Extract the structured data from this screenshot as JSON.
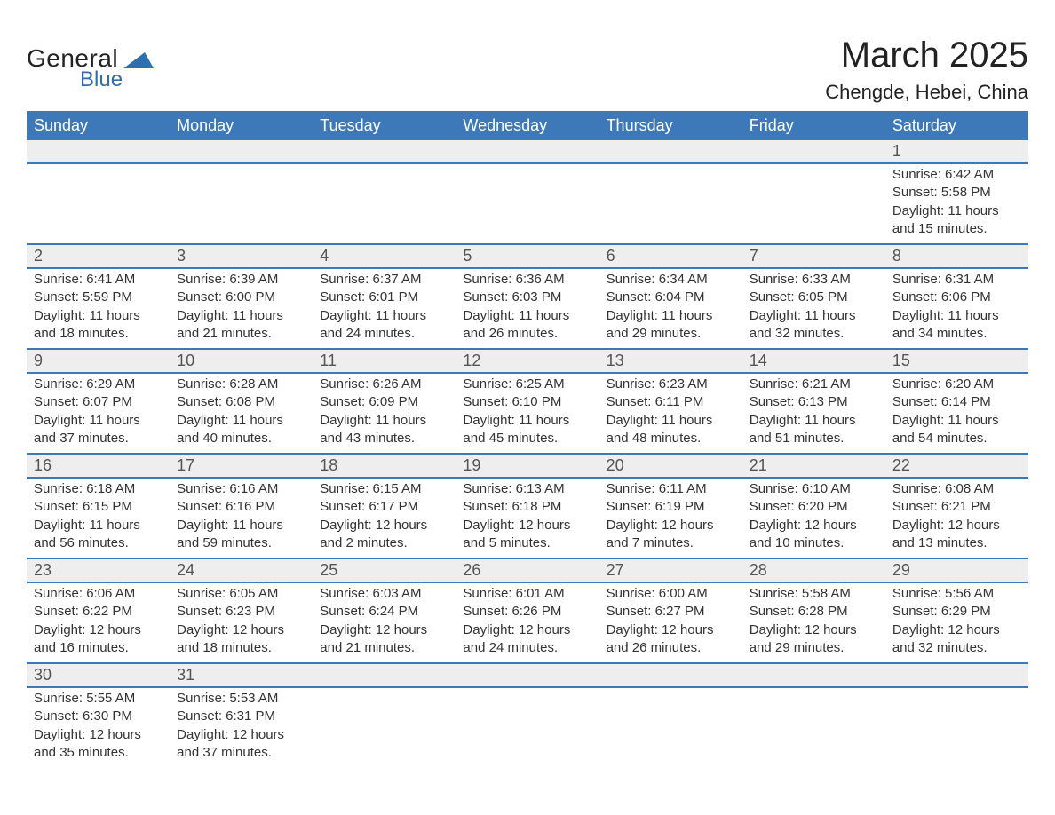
{
  "logo": {
    "general": "General",
    "blue": "Blue"
  },
  "title": "March 2025",
  "location": "Chengde, Hebei, China",
  "colors": {
    "header_bg": "#3d79b8",
    "header_text": "#ffffff",
    "daynum_bg": "#eeeeee",
    "daynum_text": "#555555",
    "body_text": "#333333",
    "logo_blue": "#2f6fb0",
    "border": "#3d79b8"
  },
  "layout": {
    "cols": 7,
    "font_family": "Arial, Helvetica, sans-serif",
    "title_fontsize": 40,
    "location_fontsize": 22,
    "weekday_fontsize": 18,
    "daynum_fontsize": 18,
    "cell_fontsize": 15
  },
  "weekdays": [
    "Sunday",
    "Monday",
    "Tuesday",
    "Wednesday",
    "Thursday",
    "Friday",
    "Saturday"
  ],
  "weeks": [
    [
      null,
      null,
      null,
      null,
      null,
      null,
      {
        "n": "1",
        "sunrise": "Sunrise: 6:42 AM",
        "sunset": "Sunset: 5:58 PM",
        "day1": "Daylight: 11 hours",
        "day2": "and 15 minutes."
      }
    ],
    [
      {
        "n": "2",
        "sunrise": "Sunrise: 6:41 AM",
        "sunset": "Sunset: 5:59 PM",
        "day1": "Daylight: 11 hours",
        "day2": "and 18 minutes."
      },
      {
        "n": "3",
        "sunrise": "Sunrise: 6:39 AM",
        "sunset": "Sunset: 6:00 PM",
        "day1": "Daylight: 11 hours",
        "day2": "and 21 minutes."
      },
      {
        "n": "4",
        "sunrise": "Sunrise: 6:37 AM",
        "sunset": "Sunset: 6:01 PM",
        "day1": "Daylight: 11 hours",
        "day2": "and 24 minutes."
      },
      {
        "n": "5",
        "sunrise": "Sunrise: 6:36 AM",
        "sunset": "Sunset: 6:03 PM",
        "day1": "Daylight: 11 hours",
        "day2": "and 26 minutes."
      },
      {
        "n": "6",
        "sunrise": "Sunrise: 6:34 AM",
        "sunset": "Sunset: 6:04 PM",
        "day1": "Daylight: 11 hours",
        "day2": "and 29 minutes."
      },
      {
        "n": "7",
        "sunrise": "Sunrise: 6:33 AM",
        "sunset": "Sunset: 6:05 PM",
        "day1": "Daylight: 11 hours",
        "day2": "and 32 minutes."
      },
      {
        "n": "8",
        "sunrise": "Sunrise: 6:31 AM",
        "sunset": "Sunset: 6:06 PM",
        "day1": "Daylight: 11 hours",
        "day2": "and 34 minutes."
      }
    ],
    [
      {
        "n": "9",
        "sunrise": "Sunrise: 6:29 AM",
        "sunset": "Sunset: 6:07 PM",
        "day1": "Daylight: 11 hours",
        "day2": "and 37 minutes."
      },
      {
        "n": "10",
        "sunrise": "Sunrise: 6:28 AM",
        "sunset": "Sunset: 6:08 PM",
        "day1": "Daylight: 11 hours",
        "day2": "and 40 minutes."
      },
      {
        "n": "11",
        "sunrise": "Sunrise: 6:26 AM",
        "sunset": "Sunset: 6:09 PM",
        "day1": "Daylight: 11 hours",
        "day2": "and 43 minutes."
      },
      {
        "n": "12",
        "sunrise": "Sunrise: 6:25 AM",
        "sunset": "Sunset: 6:10 PM",
        "day1": "Daylight: 11 hours",
        "day2": "and 45 minutes."
      },
      {
        "n": "13",
        "sunrise": "Sunrise: 6:23 AM",
        "sunset": "Sunset: 6:11 PM",
        "day1": "Daylight: 11 hours",
        "day2": "and 48 minutes."
      },
      {
        "n": "14",
        "sunrise": "Sunrise: 6:21 AM",
        "sunset": "Sunset: 6:13 PM",
        "day1": "Daylight: 11 hours",
        "day2": "and 51 minutes."
      },
      {
        "n": "15",
        "sunrise": "Sunrise: 6:20 AM",
        "sunset": "Sunset: 6:14 PM",
        "day1": "Daylight: 11 hours",
        "day2": "and 54 minutes."
      }
    ],
    [
      {
        "n": "16",
        "sunrise": "Sunrise: 6:18 AM",
        "sunset": "Sunset: 6:15 PM",
        "day1": "Daylight: 11 hours",
        "day2": "and 56 minutes."
      },
      {
        "n": "17",
        "sunrise": "Sunrise: 6:16 AM",
        "sunset": "Sunset: 6:16 PM",
        "day1": "Daylight: 11 hours",
        "day2": "and 59 minutes."
      },
      {
        "n": "18",
        "sunrise": "Sunrise: 6:15 AM",
        "sunset": "Sunset: 6:17 PM",
        "day1": "Daylight: 12 hours",
        "day2": "and 2 minutes."
      },
      {
        "n": "19",
        "sunrise": "Sunrise: 6:13 AM",
        "sunset": "Sunset: 6:18 PM",
        "day1": "Daylight: 12 hours",
        "day2": "and 5 minutes."
      },
      {
        "n": "20",
        "sunrise": "Sunrise: 6:11 AM",
        "sunset": "Sunset: 6:19 PM",
        "day1": "Daylight: 12 hours",
        "day2": "and 7 minutes."
      },
      {
        "n": "21",
        "sunrise": "Sunrise: 6:10 AM",
        "sunset": "Sunset: 6:20 PM",
        "day1": "Daylight: 12 hours",
        "day2": "and 10 minutes."
      },
      {
        "n": "22",
        "sunrise": "Sunrise: 6:08 AM",
        "sunset": "Sunset: 6:21 PM",
        "day1": "Daylight: 12 hours",
        "day2": "and 13 minutes."
      }
    ],
    [
      {
        "n": "23",
        "sunrise": "Sunrise: 6:06 AM",
        "sunset": "Sunset: 6:22 PM",
        "day1": "Daylight: 12 hours",
        "day2": "and 16 minutes."
      },
      {
        "n": "24",
        "sunrise": "Sunrise: 6:05 AM",
        "sunset": "Sunset: 6:23 PM",
        "day1": "Daylight: 12 hours",
        "day2": "and 18 minutes."
      },
      {
        "n": "25",
        "sunrise": "Sunrise: 6:03 AM",
        "sunset": "Sunset: 6:24 PM",
        "day1": "Daylight: 12 hours",
        "day2": "and 21 minutes."
      },
      {
        "n": "26",
        "sunrise": "Sunrise: 6:01 AM",
        "sunset": "Sunset: 6:26 PM",
        "day1": "Daylight: 12 hours",
        "day2": "and 24 minutes."
      },
      {
        "n": "27",
        "sunrise": "Sunrise: 6:00 AM",
        "sunset": "Sunset: 6:27 PM",
        "day1": "Daylight: 12 hours",
        "day2": "and 26 minutes."
      },
      {
        "n": "28",
        "sunrise": "Sunrise: 5:58 AM",
        "sunset": "Sunset: 6:28 PM",
        "day1": "Daylight: 12 hours",
        "day2": "and 29 minutes."
      },
      {
        "n": "29",
        "sunrise": "Sunrise: 5:56 AM",
        "sunset": "Sunset: 6:29 PM",
        "day1": "Daylight: 12 hours",
        "day2": "and 32 minutes."
      }
    ],
    [
      {
        "n": "30",
        "sunrise": "Sunrise: 5:55 AM",
        "sunset": "Sunset: 6:30 PM",
        "day1": "Daylight: 12 hours",
        "day2": "and 35 minutes."
      },
      {
        "n": "31",
        "sunrise": "Sunrise: 5:53 AM",
        "sunset": "Sunset: 6:31 PM",
        "day1": "Daylight: 12 hours",
        "day2": "and 37 minutes."
      },
      null,
      null,
      null,
      null,
      null
    ]
  ]
}
